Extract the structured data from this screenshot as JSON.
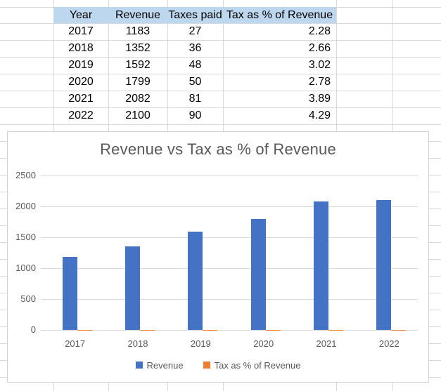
{
  "table": {
    "headers": [
      "Year",
      "Revenue",
      "Taxes paid",
      "Tax as % of Revenue"
    ],
    "rows": [
      [
        "2017",
        "1183",
        "27",
        "2.28"
      ],
      [
        "2018",
        "1352",
        "36",
        "2.66"
      ],
      [
        "2019",
        "1592",
        "48",
        "3.02"
      ],
      [
        "2020",
        "1799",
        "50",
        "2.78"
      ],
      [
        "2021",
        "2082",
        "81",
        "3.89"
      ],
      [
        "2022",
        "2100",
        "90",
        "4.29"
      ]
    ],
    "header_fill": "#BDD7EE"
  },
  "chart_data": {
    "type": "bar",
    "title": "Revenue vs Tax as % of Revenue",
    "categories": [
      "2017",
      "2018",
      "2019",
      "2020",
      "2021",
      "2022"
    ],
    "series": [
      {
        "name": "Revenue",
        "color": "#4472C4",
        "values": [
          1183,
          1352,
          1592,
          1799,
          2082,
          2100
        ]
      },
      {
        "name": "Tax as % of Revenue",
        "color": "#ED7D31",
        "values": [
          2.28,
          2.66,
          3.02,
          2.78,
          3.89,
          4.29
        ]
      }
    ],
    "xlabel": "",
    "ylabel": "",
    "ylim": [
      0,
      2500
    ],
    "yticks": [
      0,
      500,
      1000,
      1500,
      2000,
      2500
    ],
    "grid": true,
    "legend_position": "bottom",
    "colors": {
      "grid": "#d9d9d9",
      "text": "#595959"
    }
  }
}
